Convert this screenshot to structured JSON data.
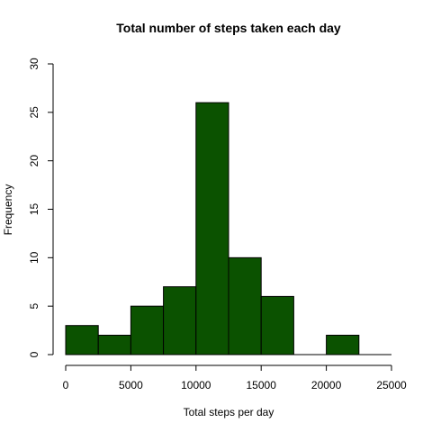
{
  "chart_data": {
    "type": "bar",
    "title": "Total number of steps taken each day",
    "xlabel": "Total steps per day",
    "ylabel": "Frequency",
    "bin_edges": [
      0,
      2500,
      5000,
      7500,
      10000,
      12500,
      15000,
      17500,
      20000,
      22500,
      25000
    ],
    "values": [
      3,
      2,
      5,
      7,
      26,
      10,
      6,
      0,
      2,
      0
    ],
    "xlim": [
      0,
      25000
    ],
    "ylim": [
      0,
      30
    ],
    "xticks": [
      0,
      5000,
      10000,
      15000,
      20000,
      25000
    ],
    "xtick_labels": [
      "0",
      "5000",
      "10000",
      "15000",
      "20000",
      "25000"
    ],
    "yticks": [
      0,
      5,
      10,
      15,
      20,
      25,
      30
    ],
    "ytick_labels": [
      "0",
      "5",
      "10",
      "15",
      "20",
      "25",
      "30"
    ],
    "bar_color": "#0b5200",
    "grid": false,
    "legend": "none"
  }
}
